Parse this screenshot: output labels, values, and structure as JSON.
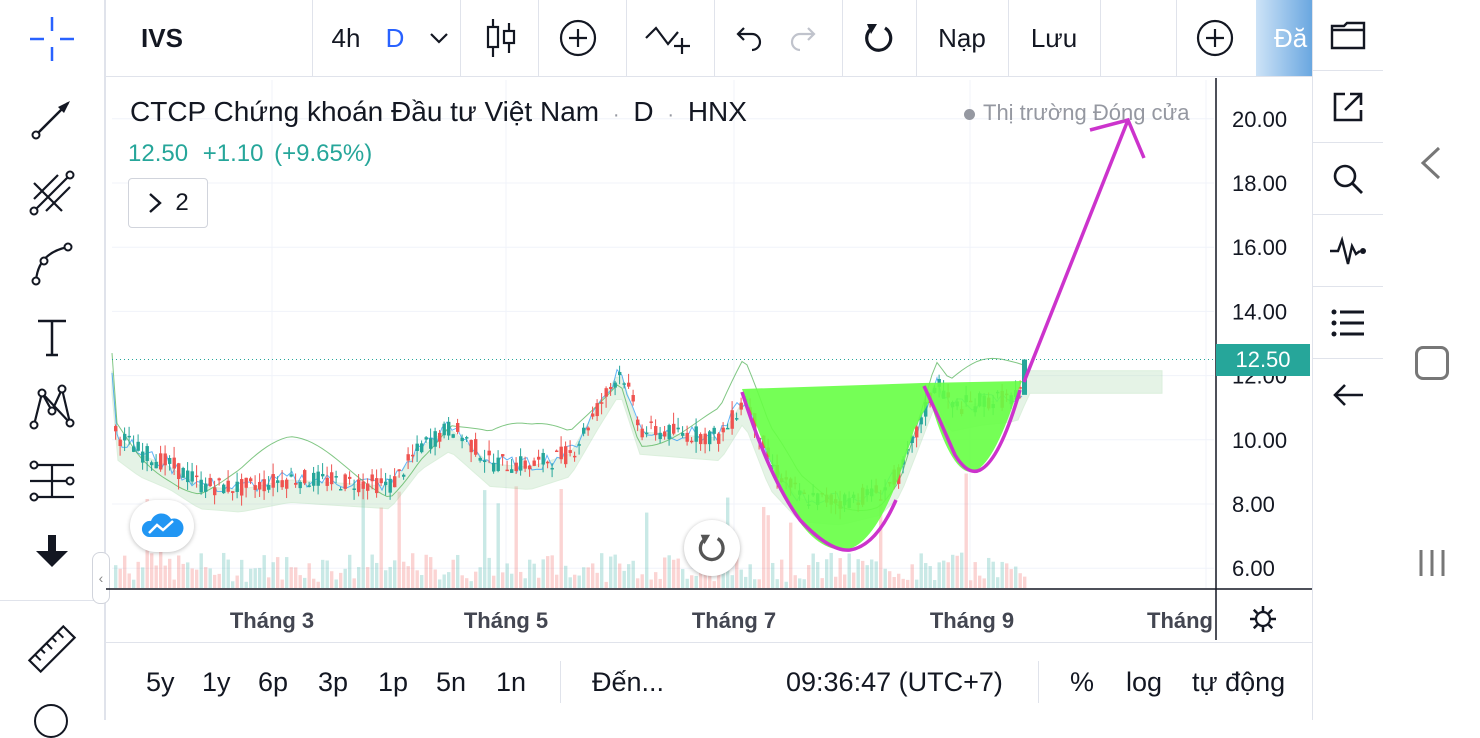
{
  "toolbar": {
    "symbol": "IVS",
    "interval_4h": "4h",
    "interval_d": "D",
    "reload": "Nạp",
    "save": "Lưu",
    "trade_partial": "Đă"
  },
  "header": {
    "title": "CTCP Chứng khoán Đầu tư Việt Nam",
    "interval": "D",
    "exchange": "HNX",
    "separator": "·",
    "price": "12.50",
    "change": "+1.10",
    "change_pct": "(+9.65%)",
    "legend_count": "2",
    "market_status": "Thị trường Đóng cửa"
  },
  "price_tag": "12.50",
  "colors": {
    "up": "#26a69a",
    "down": "#ef5350",
    "accent": "#2962ff",
    "cup_fill": "#66ff44",
    "drawing": "#cc33cc"
  },
  "bottom": {
    "ranges": [
      "5y",
      "1y",
      "6p",
      "3p",
      "1p",
      "5n",
      "1n"
    ],
    "goto": "Đến...",
    "clock": "09:36:47 (UTC+7)",
    "percent": "%",
    "log": "log",
    "auto": "tự động"
  },
  "chart_data": {
    "type": "candlestick",
    "y_ticks": [
      "20.00",
      "18.00",
      "16.00",
      "14.00",
      "12.00",
      "10.00",
      "8.00",
      "6.00"
    ],
    "x_ticks": [
      "Tháng 3",
      "Tháng 5",
      "Tháng 7",
      "Tháng 9",
      "Tháng"
    ],
    "last_price": 12.5,
    "ylim": [
      5.4,
      20.8
    ]
  }
}
